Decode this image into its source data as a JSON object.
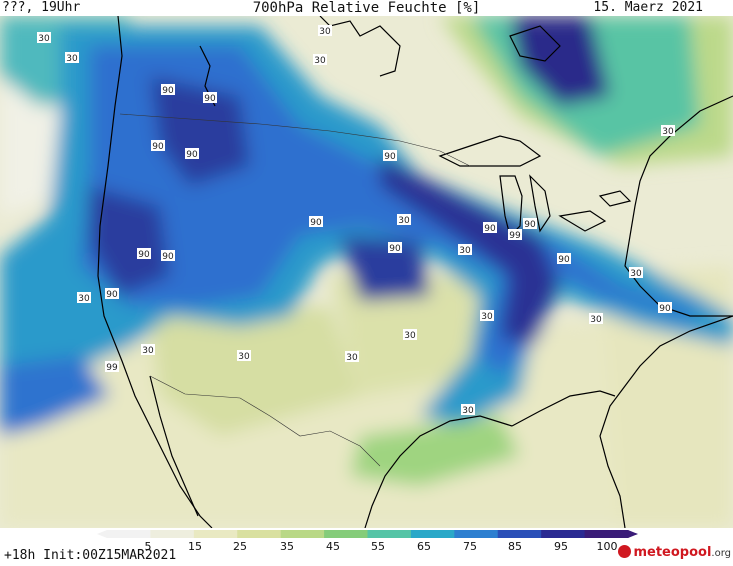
{
  "header": {
    "left": "???, 19Uhr",
    "title": "700hPa Relative Feuchte [%]",
    "date": "15. Maerz 2021"
  },
  "footer": {
    "left": "+18h Init:00Z15MAR2021",
    "brand": "meteopool",
    "brand_suffix": ".org"
  },
  "legend": {
    "ticks": [
      "5",
      "15",
      "25",
      "35",
      "45",
      "55",
      "65",
      "75",
      "85",
      "95",
      "100"
    ],
    "colors": [
      "#f2f2f2",
      "#eeeede",
      "#e9e9c2",
      "#d9e0a0",
      "#b9d886",
      "#85cc7a",
      "#55c4a6",
      "#2aa8c8",
      "#2d7fd0",
      "#2a4fb8",
      "#2a2a92",
      "#3a1c78"
    ]
  },
  "labels": [
    "30",
    "30",
    "30",
    "30",
    "30",
    "30",
    "30",
    "90",
    "90",
    "90",
    "90",
    "90",
    "90",
    "90",
    "90",
    "90",
    "90",
    "90",
    "90",
    "90",
    "90",
    "99",
    "99",
    "30",
    "30",
    "30",
    "30",
    "30",
    "30",
    "30",
    "30",
    "30"
  ]
}
